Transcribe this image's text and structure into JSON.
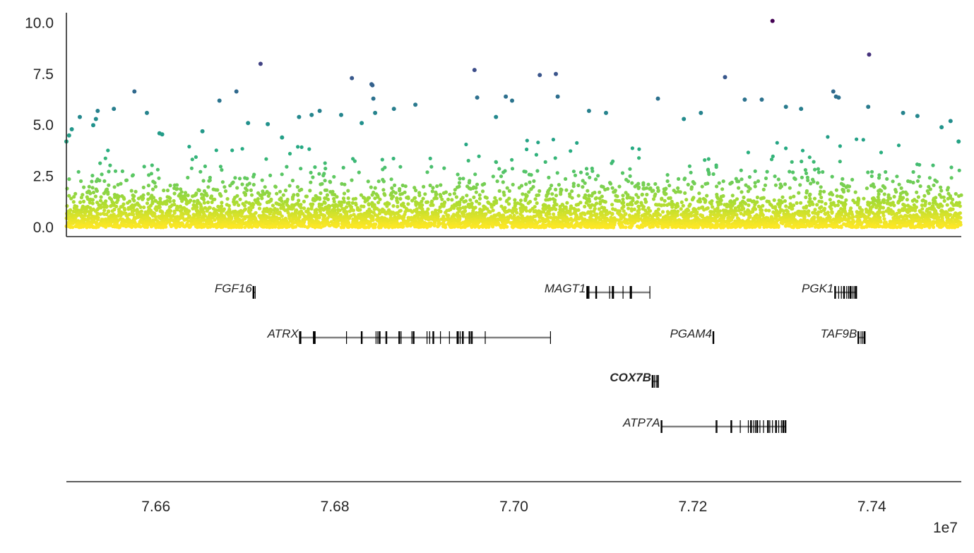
{
  "chart_data": [
    {
      "type": "scatter",
      "panel": "manhattan",
      "xlim": [
        76500000,
        77500000
      ],
      "ylim": [
        -0.45,
        10.5
      ],
      "y_ticks": [
        0.0,
        2.5,
        5.0,
        7.5,
        10.0
      ],
      "y_tick_labels": [
        "0.0",
        "2.5",
        "5.0",
        "7.5",
        "10.0"
      ],
      "colormap": "viridis (dark = high value, yellow = low value)",
      "color_low": "#fde725",
      "color_high": "#440154",
      "noise_description": "dense background of several thousand points, mostly below 3.0",
      "highlighted_points": [
        {
          "x": 76500000,
          "y": 4.2
        },
        {
          "x": 76503000,
          "y": 4.5
        },
        {
          "x": 76506000,
          "y": 4.8
        },
        {
          "x": 76515000,
          "y": 5.4
        },
        {
          "x": 76530000,
          "y": 5.0
        },
        {
          "x": 76533000,
          "y": 5.3
        },
        {
          "x": 76535000,
          "y": 5.7
        },
        {
          "x": 76553000,
          "y": 5.8
        },
        {
          "x": 76576000,
          "y": 6.65
        },
        {
          "x": 76590000,
          "y": 5.6
        },
        {
          "x": 76604000,
          "y": 4.6
        },
        {
          "x": 76607000,
          "y": 4.55
        },
        {
          "x": 76652000,
          "y": 4.7
        },
        {
          "x": 76671000,
          "y": 6.2
        },
        {
          "x": 76690000,
          "y": 6.65
        },
        {
          "x": 76703000,
          "y": 5.1
        },
        {
          "x": 76717000,
          "y": 8.0
        },
        {
          "x": 76725000,
          "y": 5.05
        },
        {
          "x": 76741000,
          "y": 4.4
        },
        {
          "x": 76760000,
          "y": 5.4
        },
        {
          "x": 76774000,
          "y": 5.5
        },
        {
          "x": 76783000,
          "y": 5.7
        },
        {
          "x": 76807000,
          "y": 5.5
        },
        {
          "x": 76819000,
          "y": 7.3
        },
        {
          "x": 76830000,
          "y": 5.1
        },
        {
          "x": 76841000,
          "y": 7.0
        },
        {
          "x": 76842000,
          "y": 6.95
        },
        {
          "x": 76843000,
          "y": 6.3
        },
        {
          "x": 76845000,
          "y": 5.6
        },
        {
          "x": 76866000,
          "y": 5.8
        },
        {
          "x": 76890000,
          "y": 6.0
        },
        {
          "x": 76956000,
          "y": 7.7
        },
        {
          "x": 76959000,
          "y": 6.35
        },
        {
          "x": 76980000,
          "y": 5.4
        },
        {
          "x": 76991000,
          "y": 6.4
        },
        {
          "x": 76998000,
          "y": 6.2
        },
        {
          "x": 77029000,
          "y": 7.45
        },
        {
          "x": 77047000,
          "y": 7.5
        },
        {
          "x": 77049000,
          "y": 6.4
        },
        {
          "x": 77084000,
          "y": 5.7
        },
        {
          "x": 77103000,
          "y": 5.6
        },
        {
          "x": 77161000,
          "y": 6.3
        },
        {
          "x": 77190000,
          "y": 5.3
        },
        {
          "x": 77209000,
          "y": 5.6
        },
        {
          "x": 77236000,
          "y": 7.35
        },
        {
          "x": 77258000,
          "y": 6.25
        },
        {
          "x": 77277000,
          "y": 6.25
        },
        {
          "x": 77289000,
          "y": 10.1
        },
        {
          "x": 77304000,
          "y": 5.9
        },
        {
          "x": 77321000,
          "y": 5.8
        },
        {
          "x": 77357000,
          "y": 6.65
        },
        {
          "x": 77360000,
          "y": 6.4
        },
        {
          "x": 77363000,
          "y": 6.35
        },
        {
          "x": 77397000,
          "y": 8.45
        },
        {
          "x": 77396000,
          "y": 5.9
        },
        {
          "x": 77435000,
          "y": 5.6
        },
        {
          "x": 77451000,
          "y": 5.45
        },
        {
          "x": 77478000,
          "y": 4.9
        },
        {
          "x": 77488000,
          "y": 5.2
        },
        {
          "x": 77497000,
          "y": 4.2
        }
      ]
    },
    {
      "type": "gene_track",
      "panel": "genes",
      "xlim": [
        76500000,
        77500000
      ],
      "x_ticks": [
        76600000,
        76800000,
        77000000,
        77200000,
        77400000
      ],
      "x_tick_labels": [
        "7.66",
        "7.68",
        "7.70",
        "7.72",
        "7.74"
      ],
      "x_offset_label": "1e7",
      "genes": [
        {
          "name": "FGF16",
          "bold": false,
          "row": 0,
          "start": 76709000,
          "end": 76711000,
          "exons": [
            76709000,
            76711000
          ]
        },
        {
          "name": "MAGT1",
          "bold": false,
          "row": 0,
          "start": 77082000,
          "end": 77152000,
          "exons": [
            77082000,
            77083000,
            77084000,
            77092000,
            77107000,
            77110000,
            77111000,
            77122000,
            77130000,
            77131000,
            77152000
          ]
        },
        {
          "name": "PGK1",
          "bold": false,
          "row": 0,
          "start": 77359000,
          "end": 77383000,
          "exons": [
            77359000,
            77363000,
            77366000,
            77369000,
            77372000,
            77374000,
            77376000,
            77378000,
            77380000,
            77382000,
            77383000
          ]
        },
        {
          "name": "ATRX",
          "bold": false,
          "row": 1,
          "start": 76761000,
          "end": 77041000,
          "exons": [
            76761000,
            76762000,
            76776000,
            76777000,
            76778000,
            76813000,
            76830000,
            76846000,
            76848000,
            76850000,
            76857000,
            76858000,
            76872000,
            76874000,
            76886000,
            76888000,
            76903000,
            76906000,
            76910000,
            76918000,
            76928000,
            76937000,
            76938000,
            76940000,
            76943000,
            76950000,
            76951000,
            76953000,
            76968000,
            77041000
          ]
        },
        {
          "name": "PGAM4",
          "bold": false,
          "row": 1,
          "start": 77223000,
          "end": 77223000,
          "exons": [
            77223000
          ]
        },
        {
          "name": "TAF9B",
          "bold": false,
          "row": 1,
          "start": 77385000,
          "end": 77392000,
          "exons": [
            77385000,
            77388000,
            77390000,
            77392000
          ]
        },
        {
          "name": "COX7B",
          "bold": true,
          "row": 2,
          "start": 77155000,
          "end": 77161000,
          "exons": [
            77155000,
            77157000,
            77159000,
            77161000
          ]
        },
        {
          "name": "ATP7A",
          "bold": false,
          "row": 3,
          "start": 77165000,
          "end": 77304000,
          "exons": [
            77165000,
            77226000,
            77227000,
            77243000,
            77253000,
            77262000,
            77265000,
            77268000,
            77270000,
            77272000,
            77275000,
            77279000,
            77284000,
            77286000,
            77289000,
            77293000,
            77296000,
            77299000,
            77301000,
            77303000,
            77304000
          ]
        }
      ]
    }
  ]
}
